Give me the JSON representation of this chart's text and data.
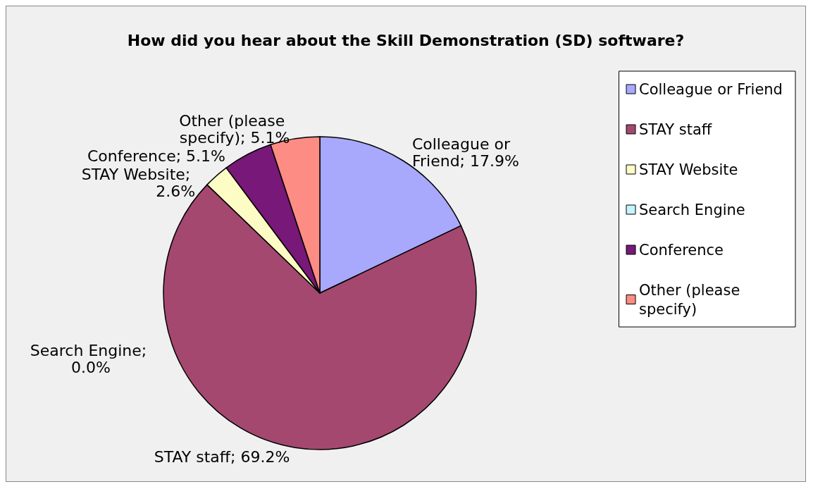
{
  "chart_data": {
    "type": "pie",
    "title": "How did you hear about the Skill Demonstration (SD) software?",
    "categories": [
      "Colleague or Friend",
      "STAY staff",
      "STAY Website",
      "Search Engine",
      "Conference",
      "Other (please specify)"
    ],
    "values": [
      17.9,
      69.2,
      2.6,
      0.0,
      5.1,
      5.1
    ],
    "value_labels": [
      "Colleague or Friend; 17.9%",
      "STAY staff; 69.2%",
      "STAY Website; 2.6%",
      "Search Engine; 0.0%",
      "Conference; 5.1%",
      "Other (please specify); 5.1%"
    ],
    "colors": [
      "#a8a8fc",
      "#a44870",
      "#fcfcc4",
      "#c4f4fc",
      "#781878",
      "#fc8c84"
    ],
    "legend": "right"
  }
}
